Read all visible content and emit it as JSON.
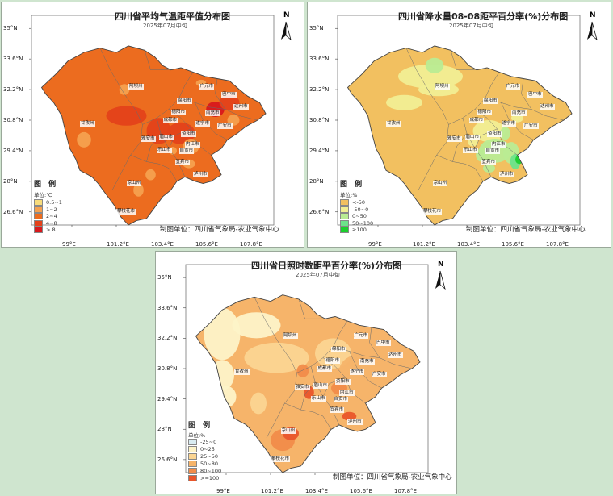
{
  "maps": [
    {
      "title": "四川省平均气温距平值分布图",
      "subtitle": "2025年07月中旬",
      "legend_title": "图 例",
      "legend_unit": "单位:℃",
      "legend_items": [
        {
          "label": "0.5~1",
          "color": "#f7dc7c"
        },
        {
          "label": "1~2",
          "color": "#f5a14f"
        },
        {
          "label": "2~4",
          "color": "#ec6c1f"
        },
        {
          "label": "4~8",
          "color": "#e4421a"
        },
        {
          "label": "> 8",
          "color": "#d8181c"
        }
      ],
      "credit": "制图单位：四川省气象局-农业气象中心"
    },
    {
      "title": "四川省降水量08-08距平百分率(%)分布图",
      "subtitle": "2025年07月中旬",
      "legend_title": "图 例",
      "legend_unit": "单位:%",
      "legend_items": [
        {
          "label": "<-50",
          "color": "#f2c060"
        },
        {
          "label": "-50~0",
          "color": "#f1ee93"
        },
        {
          "label": "0~50",
          "color": "#b9ec93"
        },
        {
          "label": "50~100",
          "color": "#6ce38a"
        },
        {
          "label": "≥100",
          "color": "#1cce2e"
        }
      ],
      "credit": "制图单位：四川省气象局-农业气象中心"
    },
    {
      "title": "四川省日照时数距平百分率(%)分布图",
      "subtitle": "2025年07月中旬",
      "legend_title": "图 例",
      "legend_unit": "单位:%",
      "legend_items": [
        {
          "label": "-25~0",
          "color": "#d9ecf2"
        },
        {
          "label": "0~25",
          "color": "#fdf3c8"
        },
        {
          "label": "25~50",
          "color": "#fbd592"
        },
        {
          "label": "50~80",
          "color": "#f6b46a"
        },
        {
          "label": "80~100",
          "color": "#f18c4a"
        },
        {
          "label": ">=100",
          "color": "#e9562b"
        }
      ],
      "credit": "制图单位：四川省气象局-农业气象中心"
    }
  ],
  "axes": {
    "lat_labels": [
      "35°N",
      "33.6°N",
      "32.2°N",
      "30.8°N",
      "29.4°N",
      "28°N",
      "26.6°N"
    ],
    "lon_labels": [
      "99°E",
      "101.2°E",
      "103.4°E",
      "105.6°E",
      "107.8°E"
    ]
  },
  "north_label": "N",
  "cities": [
    {
      "name": "阿坝州",
      "lon": 102.2,
      "lat": 32.3
    },
    {
      "name": "甘孜州",
      "lon": 99.8,
      "lat": 30.6
    },
    {
      "name": "凉山州",
      "lon": 102.1,
      "lat": 27.9
    },
    {
      "name": "攀枝花市",
      "lon": 101.6,
      "lat": 26.6
    },
    {
      "name": "雅安市",
      "lon": 102.8,
      "lat": 29.9
    },
    {
      "name": "眉山市",
      "lon": 103.7,
      "lat": 30.0
    },
    {
      "name": "乐山市",
      "lon": 103.6,
      "lat": 29.4
    },
    {
      "name": "成都市",
      "lon": 103.9,
      "lat": 30.75
    },
    {
      "name": "德阳市",
      "lon": 104.3,
      "lat": 31.15
    },
    {
      "name": "绵阳市",
      "lon": 104.6,
      "lat": 31.65
    },
    {
      "name": "广元市",
      "lon": 105.7,
      "lat": 32.3
    },
    {
      "name": "南充市",
      "lon": 106.0,
      "lat": 31.1
    },
    {
      "name": "巴中市",
      "lon": 106.8,
      "lat": 31.95
    },
    {
      "name": "达州市",
      "lon": 107.4,
      "lat": 31.4
    },
    {
      "name": "遂宁市",
      "lon": 105.5,
      "lat": 30.6
    },
    {
      "name": "广安市",
      "lon": 106.6,
      "lat": 30.5
    },
    {
      "name": "资阳市",
      "lon": 104.8,
      "lat": 30.15
    },
    {
      "name": "内江市",
      "lon": 105.0,
      "lat": 29.65
    },
    {
      "name": "自贡市",
      "lon": 104.7,
      "lat": 29.35
    },
    {
      "name": "宜宾市",
      "lon": 104.5,
      "lat": 28.85
    },
    {
      "name": "泸州市",
      "lon": 105.4,
      "lat": 28.3
    }
  ]
}
